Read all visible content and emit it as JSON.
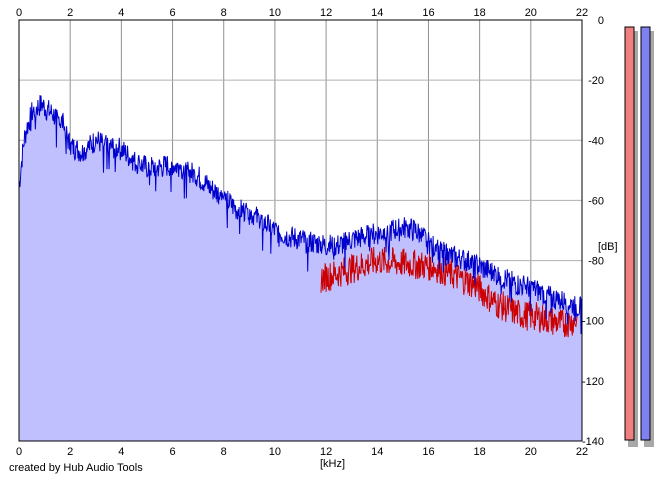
{
  "chart_data": {
    "type": "area",
    "x_ticks": [
      "0",
      "2",
      "4",
      "6",
      "8",
      "10",
      "12",
      "14",
      "16",
      "18",
      "20",
      "22"
    ],
    "y_ticks": [
      "0",
      "-20",
      "-40",
      "-60",
      "-80",
      "-100",
      "-120",
      "-140"
    ],
    "xlim": [
      0,
      22
    ],
    "ylim": [
      -140,
      0
    ],
    "xlabel": "[kHz]",
    "ylabel": "[dB]",
    "grid": true,
    "series": [
      {
        "color": "#0000cc",
        "fill": "#c0c0ff",
        "x": [
          0,
          0.1,
          0.2,
          0.3,
          0.5,
          0.7,
          0.9,
          1.1,
          1.3,
          1.5,
          1.7,
          2.0,
          2.5,
          3.0,
          3.5,
          4.0,
          4.5,
          5.0,
          5.5,
          6.0,
          6.5,
          7.0,
          7.5,
          8.0,
          8.5,
          9.0,
          9.5,
          10.0,
          10.5,
          11.0,
          11.5,
          12.0,
          12.5,
          13.0,
          13.5,
          14.0,
          14.5,
          15.0,
          15.5,
          16.0,
          16.5,
          17.0,
          17.5,
          18.0,
          18.5,
          19.0,
          19.5,
          20.0,
          20.5,
          21.0,
          21.5,
          22.0
        ],
        "values": [
          -56,
          -47,
          -40,
          -36,
          -31,
          -29,
          -28,
          -30,
          -31,
          -33,
          -34,
          -42,
          -44,
          -40,
          -42,
          -43,
          -47,
          -49,
          -49,
          -48,
          -50,
          -52,
          -56,
          -59,
          -63,
          -64,
          -67,
          -70,
          -72,
          -73,
          -74,
          -75,
          -75,
          -73,
          -72,
          -71,
          -70,
          -69,
          -70,
          -74,
          -77,
          -79,
          -80,
          -82,
          -84,
          -86,
          -88,
          -89,
          -91,
          -93,
          -94,
          -96
        ]
      },
      {
        "color": "#cc0000",
        "x": [
          11.8,
          14.0,
          16.2,
          17.8,
          18.6,
          19.6,
          20.4,
          21.2,
          21.8
        ],
        "values": [
          -86,
          -80,
          -82,
          -88,
          -94,
          -98,
          -99,
          -101,
          -100
        ]
      }
    ],
    "channels": [
      {
        "color": "#f08080"
      },
      {
        "color": "#8080f0"
      }
    ]
  },
  "footer": {
    "credit": "created by Hub Audio Tools"
  }
}
